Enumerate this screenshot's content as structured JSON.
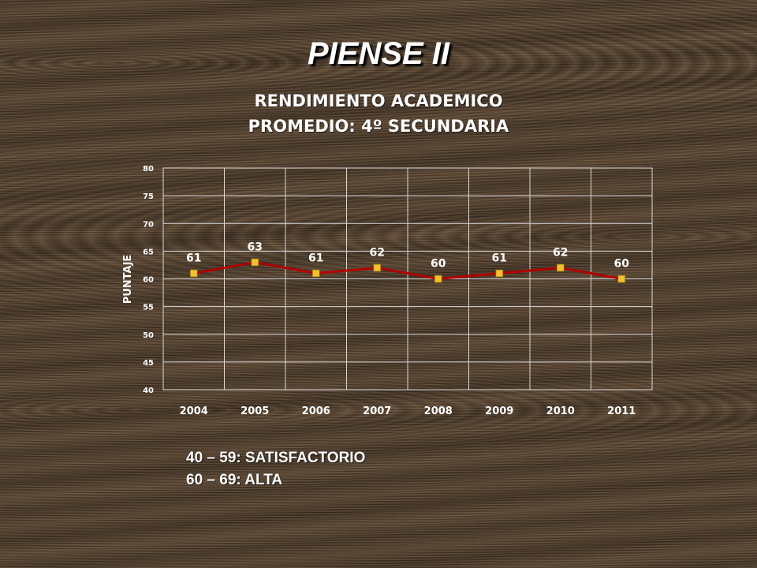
{
  "header": {
    "title": "PIENSE II",
    "subtitle_line1": "RENDIMIENTO ACADEMICO",
    "subtitle_line2": "PROMEDIO: 4º SECUNDARIA"
  },
  "legend_notes": [
    "40 – 59: SATISFACTORIO",
    "60 – 69: ALTA"
  ],
  "colors": {
    "line": "#b00000",
    "marker": "#f2c12e",
    "grid": "#d9d9d9",
    "text": "#ffffff"
  },
  "chart_data": {
    "type": "line",
    "categories": [
      "2004",
      "2005",
      "2006",
      "2007",
      "2008",
      "2009",
      "2010",
      "2011"
    ],
    "series": [
      {
        "values": [
          61,
          63,
          61,
          62,
          60,
          61,
          62,
          60
        ]
      }
    ],
    "ylabel": "PUNTAJE",
    "ylim": [
      40,
      80
    ],
    "yticks": [
      40,
      45,
      50,
      55,
      60,
      65,
      70,
      75,
      80
    ],
    "data_labels": true,
    "grid": true
  }
}
